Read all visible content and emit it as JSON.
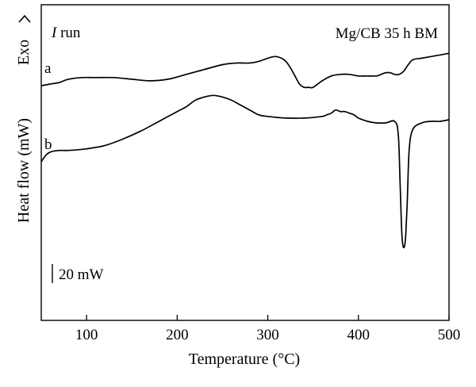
{
  "chart_data": {
    "type": "line",
    "title": "",
    "xlabel": "Temperature (°C)",
    "ylabel": "Heat flow (mW)",
    "exo_label": "Exo",
    "run_label": {
      "italic": "I",
      "rest": " run"
    },
    "sample_label": "Mg/CB 35 h BM",
    "scale_bar_label": "20 mW",
    "scale_bar_mW": 20,
    "xlim": [
      50,
      500
    ],
    "x_ticks": [
      100,
      200,
      300,
      400,
      500
    ],
    "ylim": [
      -145,
      50
    ],
    "y_unit": "mW (relative, curves vertically offset)",
    "grid": false,
    "series": [
      {
        "name": "a",
        "x": [
          50,
          60,
          70,
          80,
          95,
          110,
          130,
          150,
          170,
          190,
          210,
          230,
          250,
          265,
          280,
          290,
          300,
          308,
          315,
          320,
          325,
          330,
          335,
          340,
          345,
          350,
          360,
          370,
          380,
          390,
          400,
          410,
          420,
          425,
          430,
          435,
          440,
          445,
          450,
          455,
          460,
          470,
          480,
          490,
          500
        ],
        "y": [
          0,
          1,
          2,
          4,
          5,
          5,
          5,
          4,
          3,
          4,
          7,
          10,
          13,
          14,
          14,
          15,
          17,
          18,
          17,
          15,
          11,
          6,
          1,
          -1,
          -1,
          -1,
          3,
          6,
          7,
          7,
          6,
          6,
          6,
          7,
          8,
          8,
          7,
          7,
          9,
          13,
          16,
          17,
          18,
          19,
          20
        ]
      },
      {
        "name": "b",
        "x": [
          50,
          55,
          60,
          70,
          80,
          100,
          120,
          140,
          160,
          180,
          200,
          210,
          220,
          230,
          240,
          250,
          260,
          270,
          280,
          290,
          300,
          320,
          340,
          360,
          365,
          370,
          375,
          380,
          385,
          390,
          395,
          400,
          410,
          420,
          430,
          440,
          444,
          446,
          448,
          450,
          452,
          454,
          456,
          460,
          470,
          480,
          490,
          500
        ],
        "y": [
          -47,
          -43,
          -41,
          -40,
          -40,
          -39,
          -37,
          -33,
          -28,
          -22,
          -16,
          -13,
          -9,
          -7,
          -6,
          -7,
          -9,
          -12,
          -15,
          -18,
          -19,
          -20,
          -20,
          -19,
          -18,
          -17,
          -15,
          -16,
          -16,
          -17,
          -18,
          -20,
          -22,
          -23,
          -23,
          -22,
          -30,
          -60,
          -92,
          -100,
          -94,
          -70,
          -40,
          -27,
          -23,
          -22,
          -22,
          -21
        ]
      }
    ]
  }
}
